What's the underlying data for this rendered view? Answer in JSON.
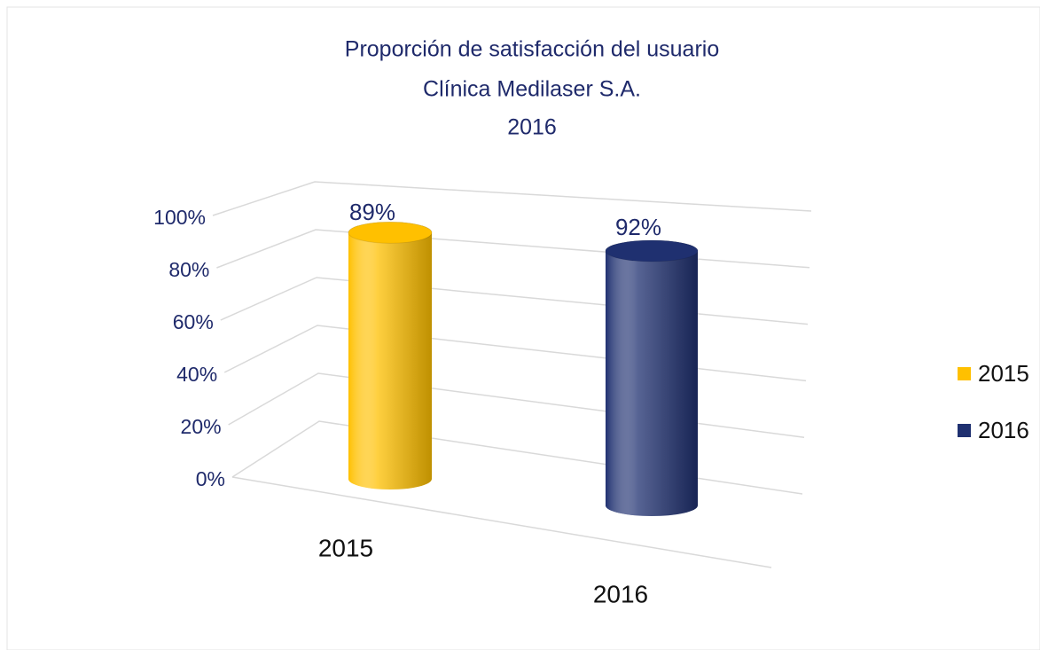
{
  "chart_data": {
    "type": "bar3d",
    "title": [
      "Proporción de satisfacción del usuario",
      "Clínica Medilaser S.A.",
      "2016"
    ],
    "categories": [
      "2015",
      "2016"
    ],
    "series": [
      {
        "name": "2015",
        "color": "#FFC000",
        "values": [
          89,
          null
        ],
        "value_labels": [
          "89%",
          null
        ]
      },
      {
        "name": "2016",
        "color": "#1F3070",
        "values": [
          null,
          92
        ],
        "value_labels": [
          null,
          "92%"
        ]
      }
    ],
    "ylim": [
      0,
      100
    ],
    "yticks": [
      {
        "value": 0,
        "label": "0%"
      },
      {
        "value": 20,
        "label": "20%"
      },
      {
        "value": 40,
        "label": "40%"
      },
      {
        "value": 60,
        "label": "60%"
      },
      {
        "value": 80,
        "label": "80%"
      },
      {
        "value": 100,
        "label": "100%"
      }
    ],
    "grid": true,
    "legend": "right"
  }
}
